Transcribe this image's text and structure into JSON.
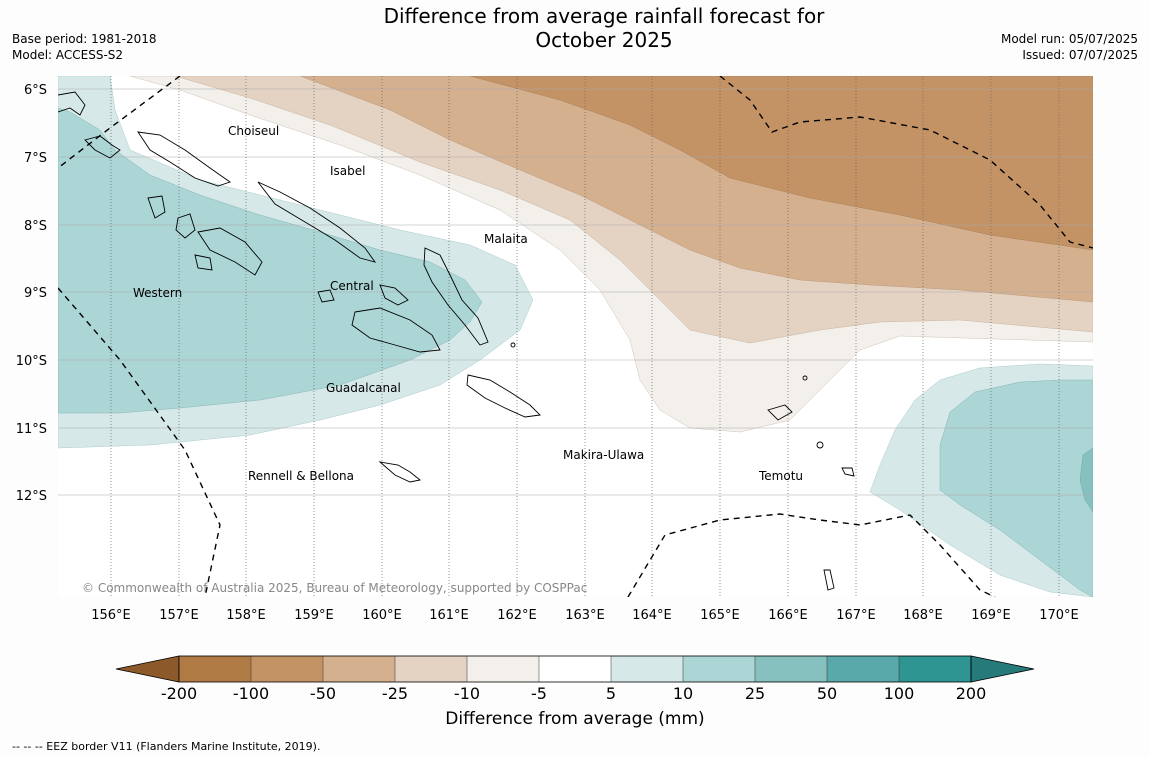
{
  "title_line1": "Difference from average rainfall forecast for",
  "title_line2": "October 2025",
  "base_period": "Base period: 1981-2018",
  "model": "Model: ACCESS-S2",
  "model_run": "Model run: 05/07/2025",
  "issued": "Issued: 07/07/2025",
  "copyright": "© Commonwealth of Australia 2025, Bureau of Meteorology, supported by COSPPac",
  "lat_labels": [
    "6°S",
    "7°S",
    "8°S",
    "9°S",
    "10°S",
    "11°S",
    "12°S"
  ],
  "lon_labels": [
    "156°E",
    "157°E",
    "158°E",
    "159°E",
    "160°E",
    "161°E",
    "162°E",
    "163°E",
    "164°E",
    "165°E",
    "166°E",
    "167°E",
    "168°E",
    "169°E",
    "170°E"
  ],
  "places": [
    "Choiseul",
    "Isabel",
    "Malaita",
    "Western",
    "Central",
    "Guadalcanal",
    "Makira-Ulawa",
    "Rennell & Bellona",
    "Temotu"
  ],
  "colorbar": {
    "ticks": [
      "-200",
      "-100",
      "-50",
      "-25",
      "-10",
      "-5",
      "5",
      "10",
      "25",
      "50",
      "100",
      "200"
    ],
    "colors": [
      "#8c5a2a",
      "#b07a45",
      "#c39366",
      "#d4b08f",
      "#e4d3c3",
      "#f3efea",
      "#ffffff",
      "#d6e9e8",
      "#acd5d5",
      "#86c0bf",
      "#5aa9aa",
      "#2f9593",
      "#267a79"
    ],
    "label": "Difference from average (mm)"
  },
  "footnote": "--  --  -- EEZ border V11 (Flanders Marine Institute, 2019)."
}
